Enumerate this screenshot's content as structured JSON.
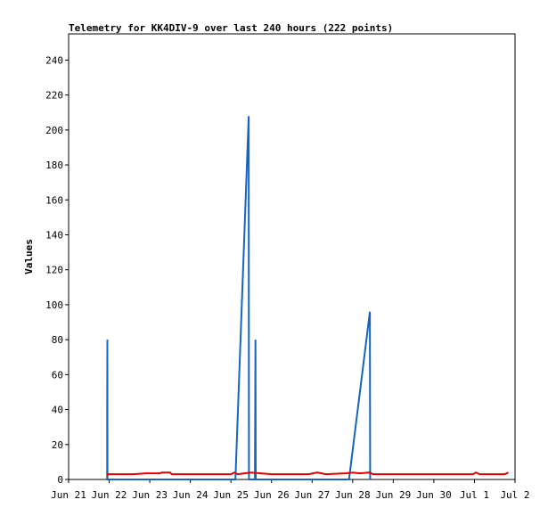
{
  "chart_data": {
    "type": "line",
    "title": "Telemetry for KK4DIV-9 over last 240 hours (222 points)",
    "xlabel": "",
    "ylabel": "Values",
    "ylim": [
      0,
      255
    ],
    "yticks": [
      0,
      20,
      40,
      60,
      80,
      100,
      120,
      140,
      160,
      180,
      200,
      220,
      240
    ],
    "xlim": [
      "2023-06-21",
      "2023-07-02"
    ],
    "xticks": [
      {
        "date": "2023-06-21",
        "label": "Jun 21"
      },
      {
        "date": "2023-06-22",
        "label": "Jun 22"
      },
      {
        "date": "2023-06-23",
        "label": "Jun 23"
      },
      {
        "date": "2023-06-24",
        "label": "Jun 24"
      },
      {
        "date": "2023-06-25",
        "label": "Jun 25"
      },
      {
        "date": "2023-06-26",
        "label": "Jun 26"
      },
      {
        "date": "2023-06-27",
        "label": "Jun 27"
      },
      {
        "date": "2023-06-28",
        "label": "Jun 28"
      },
      {
        "date": "2023-06-29",
        "label": "Jun 29"
      },
      {
        "date": "2023-06-30",
        "label": "Jun 30"
      },
      {
        "date": "2023-07-01",
        "label": "Jul 1"
      },
      {
        "date": "2023-07-02",
        "label": "Jul 2"
      }
    ],
    "grid": false,
    "series": [
      {
        "color": "#1565c0",
        "points": [
          {
            "x": "2023-06-21T22:50",
            "y": 0
          },
          {
            "x": "2023-06-21T22:50",
            "y": 40
          },
          {
            "x": "2023-06-21T22:55",
            "y": 80
          },
          {
            "x": "2023-06-21T23:00",
            "y": 0
          },
          {
            "x": "2023-06-25T02:40",
            "y": 0
          },
          {
            "x": "2023-06-25T10:30",
            "y": 208
          },
          {
            "x": "2023-06-25T10:40",
            "y": 0
          },
          {
            "x": "2023-06-25T14:10",
            "y": 0
          },
          {
            "x": "2023-06-25T14:30",
            "y": 80
          },
          {
            "x": "2023-06-25T14:40",
            "y": 0
          },
          {
            "x": "2023-06-27T21:50",
            "y": 0
          },
          {
            "x": "2023-06-28T10:10",
            "y": 96
          },
          {
            "x": "2023-06-28T10:20",
            "y": 0
          }
        ]
      },
      {
        "color": "#e00000",
        "points": [
          {
            "x": "2023-06-21T22:50",
            "y": 2
          },
          {
            "x": "2023-06-21T23:00",
            "y": 3
          },
          {
            "x": "2023-06-22T14:00",
            "y": 3
          },
          {
            "x": "2023-06-22T22:00",
            "y": 3.5
          },
          {
            "x": "2023-06-23T06:00",
            "y": 3.5
          },
          {
            "x": "2023-06-23T07:00",
            "y": 4
          },
          {
            "x": "2023-06-23T12:00",
            "y": 4
          },
          {
            "x": "2023-06-23T13:00",
            "y": 3
          },
          {
            "x": "2023-06-25T00:00",
            "y": 3
          },
          {
            "x": "2023-06-25T02:00",
            "y": 4
          },
          {
            "x": "2023-06-25T04:00",
            "y": 3
          },
          {
            "x": "2023-06-25T08:00",
            "y": 3.5
          },
          {
            "x": "2023-06-25T12:00",
            "y": 4
          },
          {
            "x": "2023-06-26T00:00",
            "y": 3
          },
          {
            "x": "2023-06-26T22:00",
            "y": 3
          },
          {
            "x": "2023-06-27T03:00",
            "y": 4
          },
          {
            "x": "2023-06-27T08:00",
            "y": 3
          },
          {
            "x": "2023-06-27T20:00",
            "y": 3.5
          },
          {
            "x": "2023-06-28T00:00",
            "y": 4
          },
          {
            "x": "2023-06-28T04:00",
            "y": 3.5
          },
          {
            "x": "2023-06-28T10:00",
            "y": 4
          },
          {
            "x": "2023-06-28T12:00",
            "y": 3
          },
          {
            "x": "2023-06-30T23:00",
            "y": 3
          },
          {
            "x": "2023-07-01T01:00",
            "y": 4
          },
          {
            "x": "2023-07-01T03:00",
            "y": 3
          },
          {
            "x": "2023-07-01T18:00",
            "y": 3
          },
          {
            "x": "2023-07-01T20:00",
            "y": 4
          }
        ]
      }
    ]
  }
}
